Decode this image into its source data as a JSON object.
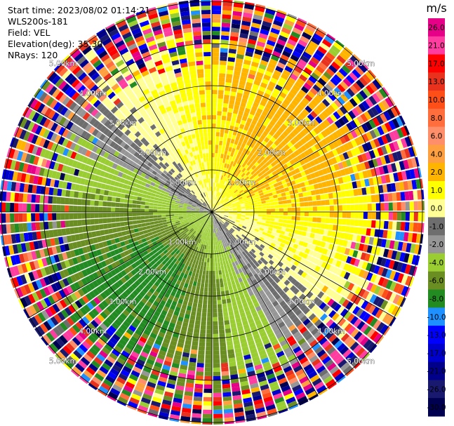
{
  "header": {
    "start_time": "Start time: 2023/08/02 01:14:21",
    "instrument": "WLS200s-181",
    "field": "Field: VEL",
    "elevation": "Elevation(deg): 35.30",
    "nrays": "NRays: 120"
  },
  "chart_data": {
    "type": "heatmap",
    "projection": "polar-ppi",
    "field": "VEL",
    "units": "m/s",
    "nrays": 120,
    "elevation_deg": 35.3,
    "range_rings_km": [
      1.0,
      2.0,
      3.0,
      4.0,
      5.0
    ],
    "ring_labels": [
      "1.00km",
      "2.00km",
      "3.00km",
      "4.00km",
      "5.00km"
    ],
    "max_range_km": 6.0,
    "spokes_deg": [
      0,
      30,
      60,
      90,
      120,
      150,
      180,
      210,
      240,
      270,
      300,
      330
    ],
    "velocity_pattern": {
      "receding_direction_deg": 45,
      "receding_peak_ms": 2.5,
      "approaching_direction_deg": 225,
      "approaching_peak_ms": -6.5,
      "clean_range_km": 3.2
    },
    "colorbar": {
      "unit": "m/s",
      "tick_labels": [
        "26.0",
        "21.0",
        "17.0",
        "13.0",
        "10.0",
        "8.0",
        "6.0",
        "4.0",
        "2.0",
        "1.0",
        "0.0",
        "-1.0",
        "-2.0",
        "-4.0",
        "-6.0",
        "-8.0",
        "-10.0",
        "-13.0",
        "-17.0",
        "-21.0",
        "-26.0",
        "-30.0"
      ],
      "bins": [
        {
          "min": 26,
          "max": 30,
          "color": "#e60087"
        },
        {
          "min": 21,
          "max": 26,
          "color": "#ff3ca0"
        },
        {
          "min": 17,
          "max": 21,
          "color": "#ff0000"
        },
        {
          "min": 13,
          "max": 17,
          "color": "#e8321e"
        },
        {
          "min": 10,
          "max": 13,
          "color": "#ff4f19"
        },
        {
          "min": 8,
          "max": 10,
          "color": "#ff6e3c"
        },
        {
          "min": 6,
          "max": 8,
          "color": "#ff8f6a"
        },
        {
          "min": 4,
          "max": 6,
          "color": "#ffa040"
        },
        {
          "min": 2,
          "max": 4,
          "color": "#ffb400"
        },
        {
          "min": 1,
          "max": 2,
          "color": "#ffff00"
        },
        {
          "min": 0,
          "max": 1,
          "color": "#ffff96"
        },
        {
          "min": -1,
          "max": 0,
          "color": "#6e6e6e"
        },
        {
          "min": -2,
          "max": -1,
          "color": "#969696"
        },
        {
          "min": -4,
          "max": -2,
          "color": "#9acd32"
        },
        {
          "min": -6,
          "max": -4,
          "color": "#6b8e23"
        },
        {
          "min": -8,
          "max": -6,
          "color": "#228b22"
        },
        {
          "min": -10,
          "max": -8,
          "color": "#1e90ff"
        },
        {
          "min": -13,
          "max": -10,
          "color": "#0000ff"
        },
        {
          "min": -17,
          "max": -13,
          "color": "#0000cd"
        },
        {
          "min": -21,
          "max": -17,
          "color": "#00008b"
        },
        {
          "min": -26,
          "max": -21,
          "color": "#191970"
        },
        {
          "min": -30,
          "max": -26,
          "color": "#000050"
        }
      ]
    }
  }
}
